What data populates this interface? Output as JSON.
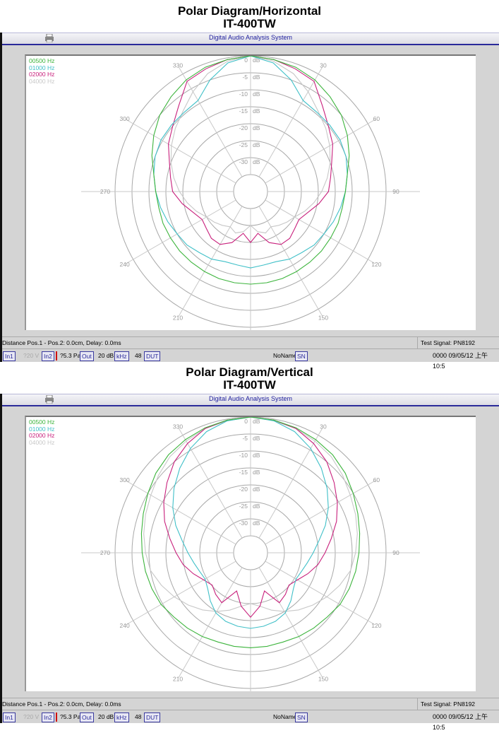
{
  "charts": [
    {
      "title": "Polar Diagram/Horizontal",
      "subtitle": "IT-400TW",
      "window_title": "Digital Audio Analysis System",
      "status_line": {
        "left": "Distance Pos.1 - Pos.2: 0.0cm, Delay: 0.0ms",
        "right": "Test Signal: PN8192"
      },
      "status_bar": {
        "in1": "In1",
        "in1_value": "?20 V",
        "in2": "In2",
        "in2_value": "?5.3 Pa",
        "out": "Out",
        "out_value": "20 dB",
        "khz": "kHz",
        "khz_value": "48",
        "dut": "DUT",
        "name": "NoName",
        "sn": "SN",
        "datetime": "0000 09/05/12 上午 10:5"
      }
    },
    {
      "title": "Polar Diagram/Vertical",
      "subtitle": "IT-400TW",
      "window_title": "Digital Audio Analysis System",
      "status_line": {
        "left": "Distance Pos.1 - Pos.2: 0.0cm, Delay: 0.0ms",
        "right": "Test Signal: PN8192"
      },
      "status_bar": {
        "in1": "In1",
        "in1_value": "?20 V",
        "in2": "In2",
        "in2_value": "?5.3 Pa",
        "out": "Out",
        "out_value": "20 dB",
        "khz": "kHz",
        "khz_value": "48",
        "dut": "DUT",
        "name": "NoName",
        "sn": "SN",
        "datetime": "0000 09/05/12 上午 10:5"
      }
    }
  ],
  "chart_data": [
    {
      "type": "line",
      "projection": "polar",
      "title": "Polar Diagram/Horizontal",
      "subtitle": "IT-400TW",
      "angle_ticks": [
        "30",
        "60",
        "90",
        "120",
        "150",
        "210",
        "240",
        "270",
        "300",
        "330"
      ],
      "radial_ticks": [
        "0",
        "-5",
        "-10",
        "-15",
        "-20",
        "-25",
        "-30"
      ],
      "radial_unit": "dB",
      "rlim": [
        -40,
        0
      ],
      "angles": [
        0,
        10,
        20,
        30,
        40,
        50,
        60,
        70,
        80,
        90,
        100,
        110,
        120,
        130,
        140,
        150,
        160,
        170,
        180,
        190,
        200,
        210,
        220,
        230,
        240,
        250,
        260,
        270,
        280,
        290,
        300,
        310,
        320,
        330,
        340,
        350
      ],
      "grid": true,
      "legend": "top-left",
      "series": [
        {
          "name": "00500 Hz",
          "color": "#3cb43c",
          "values": [
            0,
            -0.5,
            -1,
            -2,
            -3.5,
            -5,
            -7,
            -9,
            -11,
            -12,
            -12.5,
            -12.5,
            -12.7,
            -12.7,
            -12.8,
            -12.8,
            -12.7,
            -12.7,
            -12.7,
            -12.7,
            -12.7,
            -12.8,
            -12.8,
            -12.7,
            -12.7,
            -12.5,
            -12.5,
            -12,
            -11,
            -9,
            -7,
            -5,
            -3.5,
            -2,
            -1,
            -0.5
          ]
        },
        {
          "name": "01000 Hz",
          "color": "#40c0c8",
          "values": [
            0,
            -1.5,
            -5,
            -9,
            -9.5,
            -9.5,
            -9.5,
            -10,
            -11,
            -12,
            -13,
            -14,
            -15,
            -15.5,
            -16.5,
            -17,
            -18,
            -18,
            -17.5,
            -18,
            -18,
            -17,
            -16.5,
            -15.5,
            -15,
            -14,
            -13,
            -12,
            -11,
            -10,
            -9.5,
            -9.5,
            -9.5,
            -9,
            -5,
            -1.5
          ]
        },
        {
          "name": "02000 Hz",
          "color": "#c8207c",
          "values": [
            0,
            -0.5,
            -1.5,
            -2.5,
            -7,
            -10,
            -12,
            -14.5,
            -16,
            -17,
            -19.5,
            -22,
            -23.5,
            -23,
            -22,
            -22,
            -24,
            -27.5,
            -25,
            -27.5,
            -24,
            -22,
            -22,
            -23,
            -23.5,
            -22,
            -19.5,
            -17,
            -16,
            -14.5,
            -12,
            -10,
            -7,
            -2.5,
            -1.5,
            -0.5
          ]
        },
        {
          "name": "04000 Hz",
          "color": "#c8c8c8",
          "values": [
            0,
            -1,
            -3,
            -6,
            -9,
            -11,
            -13,
            -15,
            -17,
            -19,
            -21,
            -23,
            -25,
            -26,
            -27,
            -28,
            -27,
            -28,
            -30,
            -28,
            -27,
            -28,
            -27,
            -26,
            -25,
            -23,
            -21,
            -19,
            -17,
            -15,
            -13,
            -11,
            -9,
            -6,
            -3,
            -1
          ]
        }
      ]
    },
    {
      "type": "line",
      "projection": "polar",
      "title": "Polar Diagram/Vertical",
      "subtitle": "IT-400TW",
      "angle_ticks": [
        "30",
        "60",
        "90",
        "120",
        "150",
        "210",
        "240",
        "270",
        "300",
        "330"
      ],
      "radial_ticks": [
        "0",
        "-5",
        "-10",
        "-15",
        "-20",
        "-25",
        "-30"
      ],
      "radial_unit": "dB",
      "rlim": [
        -40,
        0
      ],
      "angles": [
        0,
        10,
        20,
        30,
        40,
        50,
        60,
        70,
        80,
        90,
        100,
        110,
        120,
        130,
        140,
        150,
        160,
        170,
        180,
        190,
        200,
        210,
        220,
        230,
        240,
        250,
        260,
        270,
        280,
        290,
        300,
        310,
        320,
        330,
        340,
        350
      ],
      "grid": true,
      "legend": "top-left",
      "series": [
        {
          "name": "00500 Hz",
          "color": "#3cb43c",
          "values": [
            0,
            -0.3,
            -0.8,
            -1.5,
            -2.3,
            -3.5,
            -5,
            -6.3,
            -7.3,
            -8,
            -8.5,
            -9,
            -9.5,
            -10.5,
            -11,
            -11.5,
            -12,
            -12,
            -12,
            -12,
            -12,
            -11.5,
            -11,
            -10.5,
            -9.5,
            -9,
            -8.5,
            -8,
            -7.3,
            -6.3,
            -5,
            -3.5,
            -2.3,
            -1.5,
            -0.8,
            -0.3
          ]
        },
        {
          "name": "01000 Hz",
          "color": "#40c0c8",
          "values": [
            0,
            -0.5,
            -2,
            -4.5,
            -7.5,
            -10.5,
            -13.5,
            -16.5,
            -19.5,
            -21.5,
            -23,
            -24,
            -24.5,
            -23.5,
            -21.5,
            -19.5,
            -18.5,
            -18,
            -17.7,
            -18,
            -18.5,
            -19.5,
            -21.5,
            -23.5,
            -24.5,
            -24,
            -23,
            -21.5,
            -19.5,
            -16.5,
            -13.5,
            -10.5,
            -7.5,
            -4.5,
            -2,
            -0.5
          ]
        },
        {
          "name": "02000 Hz",
          "color": "#c8207c",
          "values": [
            0,
            -0.3,
            -1,
            -2.8,
            -5,
            -7.8,
            -10.4,
            -13,
            -15.8,
            -18,
            -19.8,
            -22,
            -24,
            -25.2,
            -24,
            -23,
            -28,
            -24,
            -21,
            -24,
            -28,
            -23,
            -24,
            -25.2,
            -24,
            -22,
            -19.8,
            -18,
            -15.8,
            -13,
            -10.4,
            -7.8,
            -5,
            -2.8,
            -1,
            -0.3
          ]
        },
        {
          "name": "04000 Hz",
          "color": "#c8c8c8",
          "values": [
            0,
            -0.5,
            -1,
            -2,
            -3,
            -4.5,
            -6,
            -7,
            -8,
            -9,
            -10,
            -12,
            -14,
            -16,
            -18,
            -20,
            -22,
            -24,
            -25,
            -24,
            -22,
            -20,
            -18,
            -16,
            -14,
            -12,
            -10,
            -9,
            -8,
            -7,
            -6,
            -4.5,
            -3,
            -2,
            -1,
            -0.5
          ]
        }
      ]
    }
  ]
}
